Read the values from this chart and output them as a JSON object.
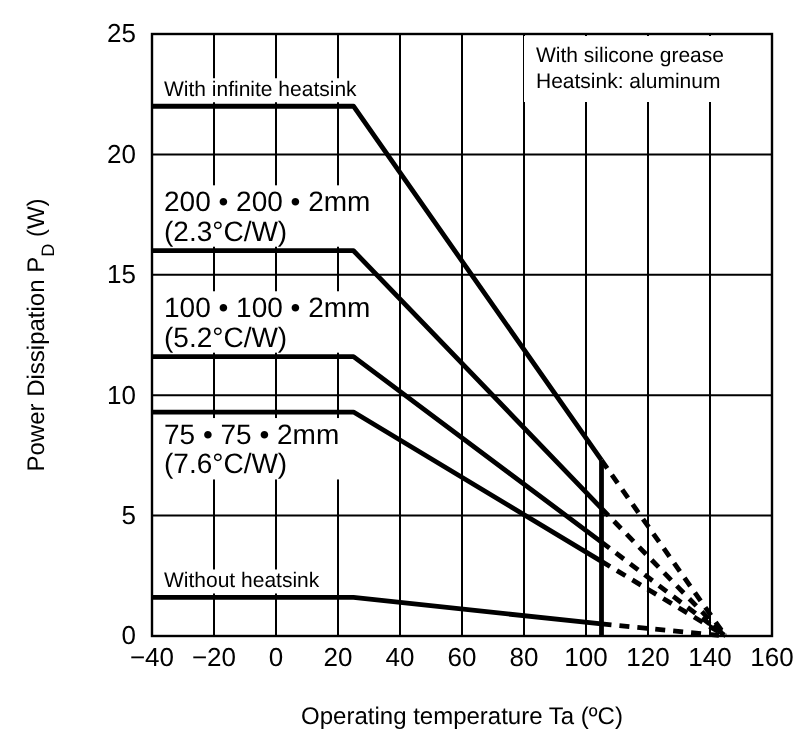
{
  "chart_data": {
    "type": "line",
    "xlabel": "Operating temperature   Ta (ºC)",
    "ylabel": "Power Dissipation   P$_{D}$ (W)",
    "xlim": [
      -40,
      160
    ],
    "xticks": [
      -40,
      -20,
      0,
      20,
      40,
      60,
      80,
      100,
      120,
      140,
      160
    ],
    "ylim": [
      0,
      25
    ],
    "yticks": [
      0,
      5,
      10,
      15,
      20,
      25
    ],
    "grid": true,
    "marker": "none",
    "line_style": "solid",
    "annotations": [
      "With silicone grease",
      "Heatsink: aluminum"
    ],
    "series": [
      {
        "name": "With infinite heatsink",
        "color": "#000000",
        "x": [
          -40,
          25,
          105
        ],
        "values": [
          22,
          22,
          7.3
        ]
      },
      {
        "color": "#000000",
        "line_style": "dashed",
        "x": [
          105,
          145
        ],
        "values": [
          7.3,
          0
        ]
      },
      {
        "name": "200 • 200 • 2mm (2.3°C/W)",
        "color": "#000000",
        "x": [
          -40,
          25,
          105
        ],
        "values": [
          16,
          16,
          5.3
        ]
      },
      {
        "color": "#000000",
        "line_style": "dashed",
        "x": [
          105,
          145
        ],
        "values": [
          5.3,
          0
        ]
      },
      {
        "name": "100 • 100 • 2mm (5.2°C/W)",
        "color": "#000000",
        "x": [
          -40,
          25,
          105
        ],
        "values": [
          11.6,
          11.6,
          3.9
        ]
      },
      {
        "color": "#000000",
        "line_style": "dashed",
        "x": [
          105,
          145
        ],
        "values": [
          3.9,
          0
        ]
      },
      {
        "name": "75 • 75 • 2mm (7.6°C/W)",
        "color": "#000000",
        "x": [
          -40,
          25,
          105
        ],
        "values": [
          9.3,
          9.3,
          3.1
        ]
      },
      {
        "color": "#000000",
        "line_style": "dashed",
        "x": [
          105,
          145
        ],
        "values": [
          3.1,
          0
        ]
      },
      {
        "name": "Without heatsink",
        "color": "#000000",
        "x": [
          -40,
          25,
          105
        ],
        "values": [
          1.6,
          1.6,
          0.5
        ]
      },
      {
        "color": "#000000",
        "line_style": "dashed",
        "x": [
          105,
          145
        ],
        "values": [
          0.5,
          0
        ]
      },
      {
        "color": "#000000",
        "x": [
          105,
          105
        ],
        "values": [
          0,
          7.3
        ]
      }
    ]
  }
}
